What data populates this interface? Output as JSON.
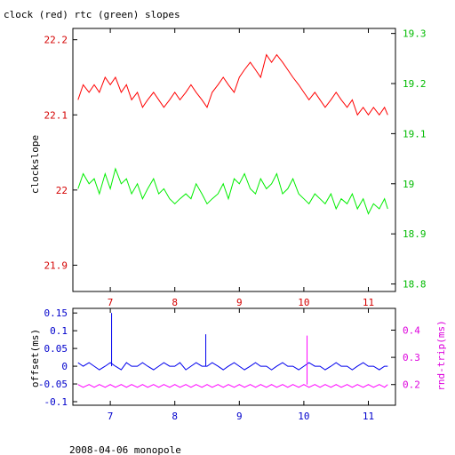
{
  "footer": "2008-04-06 monopole",
  "colors": {
    "clock": "#ff0000",
    "rtc": "#00ee00",
    "offset": "#0000ee",
    "rtt": "#ff00ff",
    "tick_red": "#d40000",
    "tick_green": "#00bb00",
    "tick_blue": "#0000cc",
    "tick_mag": "#dd00dd"
  },
  "chart_data": [
    {
      "type": "line",
      "title": "clock (red) rtc (green) slopes",
      "ylabel": "clockslope",
      "y2label": "",
      "xlim": [
        6.42,
        11.42
      ],
      "ylim": [
        21.865,
        22.215
      ],
      "y2lim": [
        18.785,
        19.31
      ],
      "x_ticks": [
        "7",
        "8",
        "9",
        "10",
        "11"
      ],
      "y_ticks": [
        "21.9",
        "22",
        "22.1",
        "22.2"
      ],
      "y2_ticks": [
        "18.8",
        "18.9",
        "19",
        "19.1",
        "19.2",
        "19.3"
      ],
      "series": [
        {
          "name": "clock",
          "axis": "left",
          "color": "#ff0000",
          "x": [
            6.5,
            6.58,
            6.67,
            6.75,
            6.83,
            6.92,
            7.0,
            7.08,
            7.17,
            7.25,
            7.33,
            7.42,
            7.5,
            7.58,
            7.67,
            7.75,
            7.83,
            7.92,
            8.0,
            8.08,
            8.17,
            8.25,
            8.33,
            8.42,
            8.5,
            8.58,
            8.67,
            8.75,
            8.83,
            8.92,
            9.0,
            9.08,
            9.17,
            9.25,
            9.33,
            9.42,
            9.5,
            9.58,
            9.67,
            9.75,
            9.83,
            9.92,
            10.0,
            10.08,
            10.17,
            10.25,
            10.33,
            10.42,
            10.5,
            10.58,
            10.67,
            10.75,
            10.83,
            10.92,
            11.0,
            11.08,
            11.17,
            11.25,
            11.3
          ],
          "y": [
            22.12,
            22.14,
            22.13,
            22.14,
            22.13,
            22.15,
            22.14,
            22.15,
            22.13,
            22.14,
            22.12,
            22.13,
            22.11,
            22.12,
            22.13,
            22.12,
            22.11,
            22.12,
            22.13,
            22.12,
            22.13,
            22.14,
            22.13,
            22.12,
            22.11,
            22.13,
            22.14,
            22.15,
            22.14,
            22.13,
            22.15,
            22.16,
            22.17,
            22.16,
            22.15,
            22.18,
            22.17,
            22.18,
            22.17,
            22.16,
            22.15,
            22.14,
            22.13,
            22.12,
            22.13,
            22.12,
            22.11,
            22.12,
            22.13,
            22.12,
            22.11,
            22.12,
            22.1,
            22.11,
            22.1,
            22.11,
            22.1,
            22.11,
            22.1
          ]
        },
        {
          "name": "rtc",
          "axis": "right",
          "color": "#00ee00",
          "x": [
            6.5,
            6.58,
            6.67,
            6.75,
            6.83,
            6.92,
            7.0,
            7.08,
            7.17,
            7.25,
            7.33,
            7.42,
            7.5,
            7.58,
            7.67,
            7.75,
            7.83,
            7.92,
            8.0,
            8.08,
            8.17,
            8.25,
            8.33,
            8.42,
            8.5,
            8.58,
            8.67,
            8.75,
            8.83,
            8.92,
            9.0,
            9.08,
            9.17,
            9.25,
            9.33,
            9.42,
            9.5,
            9.58,
            9.67,
            9.75,
            9.83,
            9.92,
            10.0,
            10.08,
            10.17,
            10.25,
            10.33,
            10.42,
            10.5,
            10.58,
            10.67,
            10.75,
            10.83,
            10.92,
            11.0,
            11.08,
            11.17,
            11.25,
            11.3
          ],
          "y": [
            18.99,
            19.02,
            19.0,
            19.01,
            18.98,
            19.02,
            18.99,
            19.03,
            19.0,
            19.01,
            18.98,
            19.0,
            18.97,
            18.99,
            19.01,
            18.98,
            18.99,
            18.97,
            18.96,
            18.97,
            18.98,
            18.97,
            19.0,
            18.98,
            18.96,
            18.97,
            18.98,
            19.0,
            18.97,
            19.01,
            19.0,
            19.02,
            18.99,
            18.98,
            19.01,
            18.99,
            19.0,
            19.02,
            18.98,
            18.99,
            19.01,
            18.98,
            18.97,
            18.96,
            18.98,
            18.97,
            18.96,
            18.98,
            18.95,
            18.97,
            18.96,
            18.98,
            18.95,
            18.97,
            18.94,
            18.96,
            18.95,
            18.97,
            18.95
          ]
        }
      ]
    },
    {
      "type": "line",
      "title": "",
      "ylabel": "offset(ms)",
      "y2label": "rnd-trip(ms)",
      "xlim": [
        6.42,
        11.42
      ],
      "ylim": [
        -0.11,
        0.163
      ],
      "y2lim": [
        0.124,
        0.48
      ],
      "x_ticks": [
        "7",
        "8",
        "9",
        "10",
        "11"
      ],
      "y_ticks": [
        "-0.1",
        "-0.05",
        "0",
        "0.05",
        "0.1",
        "0.15"
      ],
      "y2_ticks": [
        "0.2",
        "0.3",
        "0.4"
      ],
      "series": [
        {
          "name": "offset",
          "axis": "left",
          "color": "#0000ee",
          "x": [
            6.5,
            6.58,
            6.67,
            6.75,
            6.83,
            6.92,
            7.0,
            7.08,
            7.17,
            7.25,
            7.33,
            7.42,
            7.5,
            7.58,
            7.67,
            7.75,
            7.83,
            7.92,
            8.0,
            8.08,
            8.17,
            8.25,
            8.33,
            8.42,
            8.5,
            8.58,
            8.67,
            8.75,
            8.83,
            8.92,
            9.0,
            9.08,
            9.17,
            9.25,
            9.33,
            9.42,
            9.5,
            9.58,
            9.67,
            9.75,
            9.83,
            9.92,
            10.0,
            10.08,
            10.17,
            10.25,
            10.33,
            10.42,
            10.5,
            10.58,
            10.67,
            10.75,
            10.83,
            10.92,
            11.0,
            11.08,
            11.17,
            11.25,
            11.3
          ],
          "y": [
            0.01,
            0.0,
            0.01,
            0.0,
            -0.01,
            0.0,
            0.01,
            0.0,
            -0.01,
            0.01,
            0.0,
            0.0,
            0.01,
            0.0,
            -0.01,
            0.0,
            0.01,
            0.0,
            0.0,
            0.01,
            -0.01,
            0.0,
            0.01,
            0.0,
            0.0,
            0.01,
            0.0,
            -0.01,
            0.0,
            0.01,
            0.0,
            -0.01,
            0.0,
            0.01,
            0.0,
            0.0,
            -0.01,
            0.0,
            0.01,
            0.0,
            0.0,
            -0.01,
            0.0,
            0.01,
            0.0,
            0.0,
            -0.01,
            0.0,
            0.01,
            0.0,
            0.0,
            -0.01,
            0.0,
            0.01,
            0.0,
            0.0,
            -0.01,
            0.0,
            0.0
          ]
        },
        {
          "name": "rnd-trip",
          "axis": "right",
          "color": "#ff00ff",
          "x": [
            6.5,
            6.58,
            6.67,
            6.75,
            6.83,
            6.92,
            7.0,
            7.08,
            7.17,
            7.25,
            7.33,
            7.42,
            7.5,
            7.58,
            7.67,
            7.75,
            7.83,
            7.92,
            8.0,
            8.08,
            8.17,
            8.25,
            8.33,
            8.42,
            8.5,
            8.58,
            8.67,
            8.75,
            8.83,
            8.92,
            9.0,
            9.08,
            9.17,
            9.25,
            9.33,
            9.42,
            9.5,
            9.58,
            9.67,
            9.75,
            9.83,
            9.92,
            10.0,
            10.08,
            10.17,
            10.25,
            10.33,
            10.42,
            10.5,
            10.58,
            10.67,
            10.75,
            10.83,
            10.92,
            11.0,
            11.08,
            11.17,
            11.25,
            11.3
          ],
          "y": [
            0.2,
            0.19,
            0.2,
            0.19,
            0.2,
            0.19,
            0.2,
            0.19,
            0.2,
            0.19,
            0.2,
            0.19,
            0.2,
            0.19,
            0.2,
            0.19,
            0.2,
            0.19,
            0.2,
            0.19,
            0.2,
            0.19,
            0.2,
            0.19,
            0.2,
            0.19,
            0.2,
            0.19,
            0.2,
            0.19,
            0.2,
            0.19,
            0.2,
            0.19,
            0.2,
            0.19,
            0.2,
            0.19,
            0.2,
            0.19,
            0.2,
            0.19,
            0.2,
            0.19,
            0.2,
            0.19,
            0.2,
            0.19,
            0.2,
            0.19,
            0.2,
            0.19,
            0.2,
            0.19,
            0.2,
            0.19,
            0.2,
            0.19,
            0.2
          ]
        }
      ],
      "annotations": [
        {
          "series": "offset",
          "x": 7.02,
          "y": 0.15
        },
        {
          "series": "offset",
          "x": 8.48,
          "y": 0.09
        },
        {
          "series": "rnd-trip",
          "x": 10.05,
          "y": 0.38
        }
      ]
    }
  ]
}
